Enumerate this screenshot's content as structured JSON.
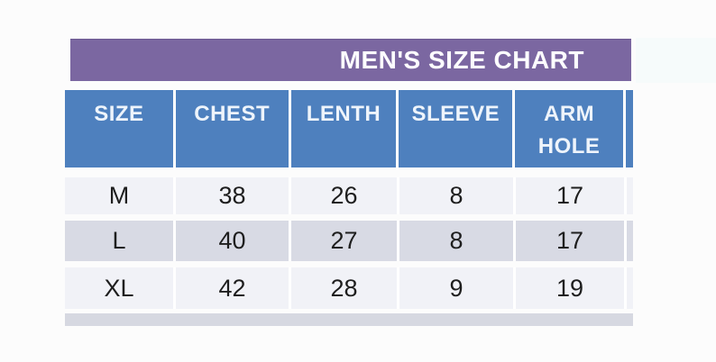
{
  "title_banner": {
    "title": "MEN'S SIZE CHART"
  },
  "chart_data": {
    "type": "table",
    "title": "MEN'S SIZE CHART",
    "columns": [
      "SIZE",
      "CHEST",
      "LENTH",
      "SLEEVE",
      "ARM HOLE"
    ],
    "rows": [
      [
        "M",
        "38",
        "26",
        "8",
        "17"
      ],
      [
        "L",
        "40",
        "27",
        "8",
        "17"
      ],
      [
        "XL",
        "42",
        "28",
        "9",
        "19"
      ]
    ],
    "layout_hints": {
      "header_position": "top",
      "title_alignment": "right",
      "alternating_rows": true
    }
  },
  "colors": {
    "banner_purple": "#7b67a1",
    "header_blue": "#4e80be",
    "row_light": "#f1f2f7",
    "row_shaded": "#d8dae4",
    "bottom_strip_gray": "#d6d8e1",
    "divider_white": "#ffffff",
    "header_text": "#eef4fb",
    "data_text": "#1e1e1e",
    "background": "#fcfcfc"
  }
}
